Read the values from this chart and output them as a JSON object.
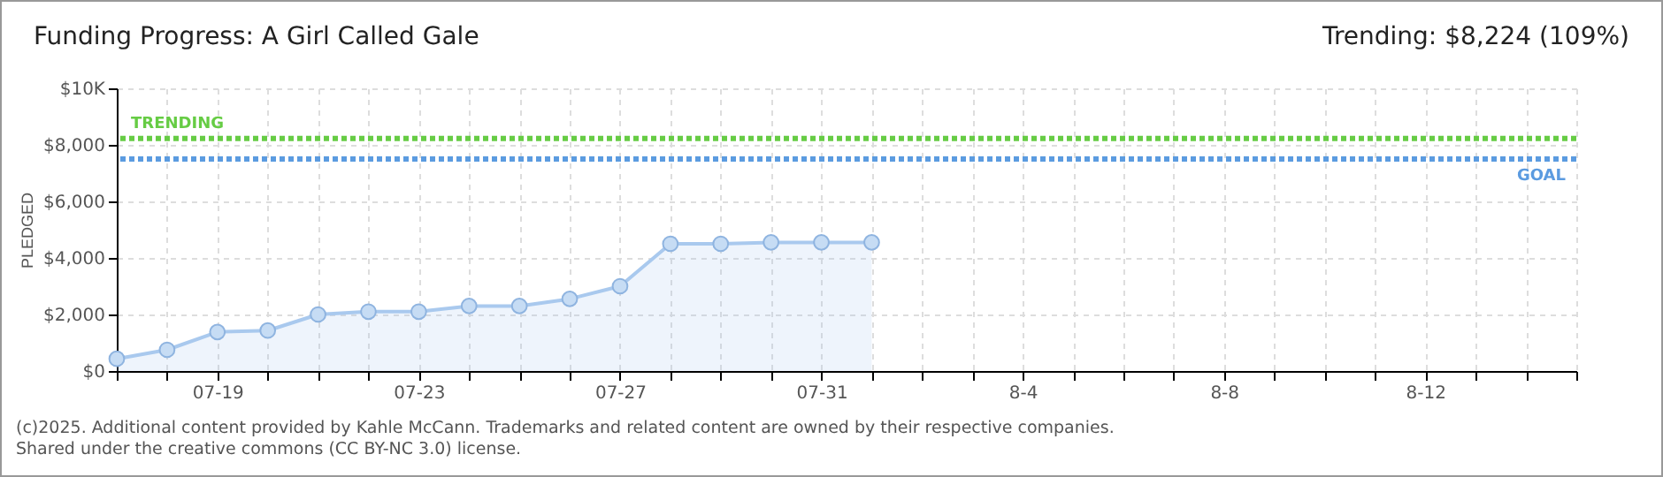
{
  "chart_data": {
    "type": "area",
    "title": "Funding Progress: A Girl Called Gale",
    "ylabel": "PLEDGED",
    "x": [
      "2025-07-17",
      "2025-07-18",
      "2025-07-19",
      "2025-07-20",
      "2025-07-21",
      "2025-07-22",
      "2025-07-23",
      "2025-07-24",
      "2025-07-25",
      "2025-07-26",
      "2025-07-27",
      "2025-07-28",
      "2025-07-29",
      "2025-07-30",
      "2025-07-31",
      "2025-08-01"
    ],
    "series": [
      {
        "color": "#a9c9ee",
        "values": [
          430,
          750,
          1380,
          1430,
          2000,
          2100,
          2100,
          2300,
          2300,
          2550,
          3000,
          4500,
          4500,
          4550,
          4550,
          4550
        ]
      }
    ],
    "marker": "circle",
    "grid": true,
    "xlim": [
      "2025-07-17",
      "2025-08-15"
    ],
    "xticks": [
      {
        "value": "2025-07-17",
        "label": null
      },
      {
        "value": "2025-07-18",
        "label": null
      },
      {
        "value": "2025-07-19",
        "label": "07-19"
      },
      {
        "value": "2025-07-20",
        "label": null
      },
      {
        "value": "2025-07-21",
        "label": null
      },
      {
        "value": "2025-07-22",
        "label": null
      },
      {
        "value": "2025-07-23",
        "label": "07-23"
      },
      {
        "value": "2025-07-24",
        "label": null
      },
      {
        "value": "2025-07-25",
        "label": null
      },
      {
        "value": "2025-07-26",
        "label": null
      },
      {
        "value": "2025-07-27",
        "label": "07-27"
      },
      {
        "value": "2025-07-28",
        "label": null
      },
      {
        "value": "2025-07-29",
        "label": null
      },
      {
        "value": "2025-07-30",
        "label": null
      },
      {
        "value": "2025-07-31",
        "label": "07-31"
      },
      {
        "value": "2025-08-01",
        "label": null
      },
      {
        "value": "2025-08-02",
        "label": null
      },
      {
        "value": "2025-08-03",
        "label": null
      },
      {
        "value": "2025-08-04",
        "label": "8-4"
      },
      {
        "value": "2025-08-05",
        "label": null
      },
      {
        "value": "2025-08-06",
        "label": null
      },
      {
        "value": "2025-08-07",
        "label": null
      },
      {
        "value": "2025-08-08",
        "label": "8-8"
      },
      {
        "value": "2025-08-09",
        "label": null
      },
      {
        "value": "2025-08-10",
        "label": null
      },
      {
        "value": "2025-08-11",
        "label": null
      },
      {
        "value": "2025-08-12",
        "label": "8-12"
      },
      {
        "value": "2025-08-13",
        "label": null
      },
      {
        "value": "2025-08-14",
        "label": null
      },
      {
        "value": "2025-08-15",
        "label": null
      }
    ],
    "ylim": [
      0,
      10000
    ],
    "yticks": [
      {
        "value": 0,
        "label": "$0"
      },
      {
        "value": 2000,
        "label": "$2,000"
      },
      {
        "value": 4000,
        "label": "$4,000"
      },
      {
        "value": 6000,
        "label": "$6,000"
      },
      {
        "value": 8000,
        "label": "$8,000"
      },
      {
        "value": 10000,
        "label": "$10K"
      }
    ],
    "ref_lines": [
      {
        "axis": "y",
        "value": 8224,
        "label": "TRENDING",
        "color": "#66cc44",
        "line_style": "dotted"
      },
      {
        "axis": "y",
        "value": 7500,
        "label": "GOAL",
        "color": "#5b9be0",
        "line_style": "dotted"
      }
    ],
    "annotations": [
      "Trending: $8,224 (109%)",
      "(c)2025. Additional content provided by Kahle McCann. Trademarks and related content are owned by their respective companies.",
      "Shared under the creative commons (CC BY-NC 3.0) license."
    ]
  }
}
